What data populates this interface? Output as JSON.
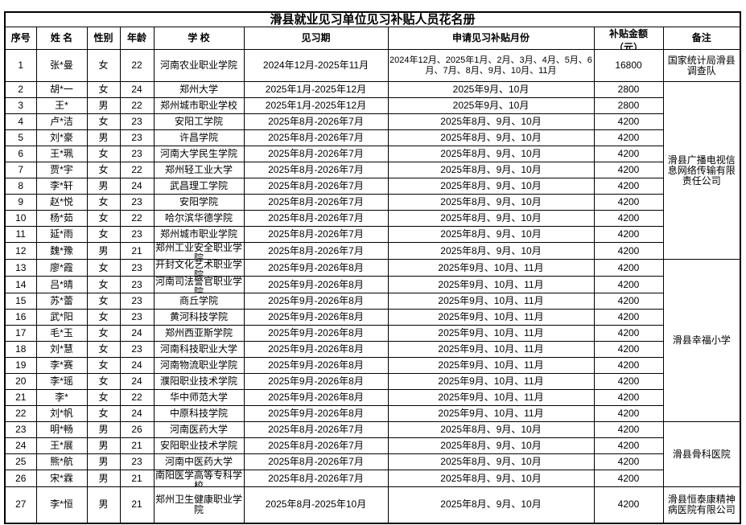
{
  "title": "滑县就业见习单位见习补贴人员花名册",
  "columns": [
    {
      "key": "no",
      "label": "序号"
    },
    {
      "key": "name",
      "label": "姓  名"
    },
    {
      "key": "gender",
      "label": "性别"
    },
    {
      "key": "age",
      "label": "年龄"
    },
    {
      "key": "school",
      "label": "学  校"
    },
    {
      "key": "period",
      "label": "见习期"
    },
    {
      "key": "months",
      "label": "申请见习补贴月份"
    },
    {
      "key": "amount",
      "label": "补贴金额",
      "label2": "（元）"
    },
    {
      "key": "remark",
      "label": "备注"
    }
  ],
  "rows": [
    {
      "no": 1,
      "name": "张*曼",
      "gender": "女",
      "age": 22,
      "school": "河南农业职业学院",
      "period": "2024年12月-2025年11月",
      "months": "2024年12月、2025年1月、2月、3月、4月、5月、6月、7月、8月、9月、10月、11月",
      "amount": "16800"
    },
    {
      "no": 2,
      "name": "胡*一",
      "gender": "女",
      "age": 24,
      "school": "郑州大学",
      "period": "2025年1月-2025年12月",
      "months": "2025年9月、10月",
      "amount": "2800"
    },
    {
      "no": 3,
      "name": "王*",
      "gender": "男",
      "age": 22,
      "school": "郑州城市职业学校",
      "period": "2025年1月-2025年12月",
      "months": "2025年9月、10月",
      "amount": "2800"
    },
    {
      "no": 4,
      "name": "卢*洁",
      "gender": "女",
      "age": 23,
      "school": "安阳工学院",
      "period": "2025年8月-2026年7月",
      "months": "2025年8月、9月、10月",
      "amount": "4200"
    },
    {
      "no": 5,
      "name": "刘*豪",
      "gender": "男",
      "age": 23,
      "school": "许昌学院",
      "period": "2025年8月-2026年7月",
      "months": "2025年8月、9月、10月",
      "amount": "4200"
    },
    {
      "no": 6,
      "name": "王*珮",
      "gender": "女",
      "age": 23,
      "school": "河南大学民生学院",
      "period": "2025年8月-2026年7月",
      "months": "2025年8月、9月、10月",
      "amount": "4200"
    },
    {
      "no": 7,
      "name": "贾*宇",
      "gender": "女",
      "age": 22,
      "school": "郑州轻工业大学",
      "period": "2025年8月-2026年7月",
      "months": "2025年8月、9月、10月",
      "amount": "4200"
    },
    {
      "no": 8,
      "name": "李*轩",
      "gender": "男",
      "age": 24,
      "school": "武昌理工学院",
      "period": "2025年8月-2026年7月",
      "months": "2025年8月、9月、10月",
      "amount": "4200"
    },
    {
      "no": 9,
      "name": "赵*悦",
      "gender": "女",
      "age": 23,
      "school": "安阳学院",
      "period": "2025年8月-2026年7月",
      "months": "2025年8月、9月、10月",
      "amount": "4200"
    },
    {
      "no": 10,
      "name": "杨*茹",
      "gender": "女",
      "age": 22,
      "school": "哈尔滨华德学院",
      "period": "2025年8月-2026年7月",
      "months": "2025年8月、9月、10月",
      "amount": "4200"
    },
    {
      "no": 11,
      "name": "延*雨",
      "gender": "女",
      "age": 23,
      "school": "郑州城市职业学院",
      "period": "2025年8月-2026年7月",
      "months": "2025年8月、9月、10月",
      "amount": "4200"
    },
    {
      "no": 12,
      "name": "魏*豫",
      "gender": "男",
      "age": 21,
      "school": "郑州工业安全职业学院",
      "period": "2025年8月-2026年7月",
      "months": "2025年8月、9月、10月",
      "amount": "4200"
    },
    {
      "no": 13,
      "name": "廖*霞",
      "gender": "女",
      "age": 23,
      "school": "开封文化艺术职业学院",
      "period": "2025年9月-2026年8月",
      "months": "2025年9月、10月、11月",
      "amount": "4200"
    },
    {
      "no": 14,
      "name": "吕*晴",
      "gender": "女",
      "age": 23,
      "school": "河南司法警官职业学院",
      "period": "2025年9月-2026年8月",
      "months": "2025年9月、10月、11月",
      "amount": "4200"
    },
    {
      "no": 15,
      "name": "苏*蕾",
      "gender": "女",
      "age": 23,
      "school": "商丘学院",
      "period": "2025年9月-2026年8月",
      "months": "2025年9月、10月、11月",
      "amount": "4200"
    },
    {
      "no": 16,
      "name": "武*阳",
      "gender": "女",
      "age": 23,
      "school": "黄河科技学院",
      "period": "2025年9月-2026年8月",
      "months": "2025年9月、10月、11月",
      "amount": "4200"
    },
    {
      "no": 17,
      "name": "毛*玉",
      "gender": "女",
      "age": 24,
      "school": "郑州西亚斯学院",
      "period": "2025年9月-2026年8月",
      "months": "2025年9月、10月、11月",
      "amount": "4200"
    },
    {
      "no": 18,
      "name": "刘*慧",
      "gender": "女",
      "age": 23,
      "school": "河南科技职业大学",
      "period": "2025年9月-2026年8月",
      "months": "2025年9月、10月、11月",
      "amount": "4200"
    },
    {
      "no": 19,
      "name": "李*赛",
      "gender": "女",
      "age": 24,
      "school": "河南物流职业学院",
      "period": "2025年9月-2026年8月",
      "months": "2025年9月、10月、11月",
      "amount": "4200"
    },
    {
      "no": 20,
      "name": "李*瑶",
      "gender": "女",
      "age": 24,
      "school": "濮阳职业技术学院",
      "period": "2025年9月-2026年8月",
      "months": "2025年9月、10月、11月",
      "amount": "4200"
    },
    {
      "no": 21,
      "name": "李*",
      "gender": "女",
      "age": 22,
      "school": "华中师范大学",
      "period": "2025年9月-2026年8月",
      "months": "2025年9月、10月、11月",
      "amount": "4200"
    },
    {
      "no": 22,
      "name": "刘*帆",
      "gender": "女",
      "age": 24,
      "school": "中原科技学院",
      "period": "2025年9月-2026年8月",
      "months": "2025年9月、10月、11月",
      "amount": "4200"
    },
    {
      "no": 23,
      "name": "明*畅",
      "gender": "男",
      "age": 26,
      "school": "河南医药大学",
      "period": "2025年8月-2026年7月",
      "months": "2025年8月、9月、10月",
      "amount": "4200"
    },
    {
      "no": 24,
      "name": "王*展",
      "gender": "男",
      "age": 21,
      "school": "安阳职业技术学院",
      "period": "2025年8月-2026年7月",
      "months": "2025年8月、9月、10月",
      "amount": "4200"
    },
    {
      "no": 25,
      "name": "熊*航",
      "gender": "男",
      "age": 23,
      "school": "河南中医药大学",
      "period": "2025年8月-2026年7月",
      "months": "2025年8月、9月、10月",
      "amount": "4200"
    },
    {
      "no": 26,
      "name": "宋*霖",
      "gender": "男",
      "age": 21,
      "school": "南阳医学高等专科学校",
      "period": "2025年8月-2026年7月",
      "months": "2025年8月、9月、10月",
      "amount": "4200"
    },
    {
      "no": 27,
      "name": "李*恒",
      "gender": "男",
      "age": 21,
      "school": "郑州卫生健康职业学院",
      "period": "2025年8月-2025年10月",
      "months": "2025年8月、9月、10月",
      "amount": "4200"
    }
  ],
  "remark_groups": [
    {
      "text": "国家统计局滑县调查队",
      "start": 1,
      "span": 1
    },
    {
      "text": "滑县广播电视信息网络传输有限责任公司",
      "start": 2,
      "span": 11
    },
    {
      "text": "滑县幸福小学",
      "start": 13,
      "span": 10
    },
    {
      "text": "滑县骨科医院",
      "start": 23,
      "span": 4
    },
    {
      "text": "滑县恒泰康精神病医院有限公司",
      "start": 27,
      "span": 1
    }
  ],
  "colors": {
    "border": "#000000",
    "text": "#000000",
    "background": "#ffffff"
  }
}
